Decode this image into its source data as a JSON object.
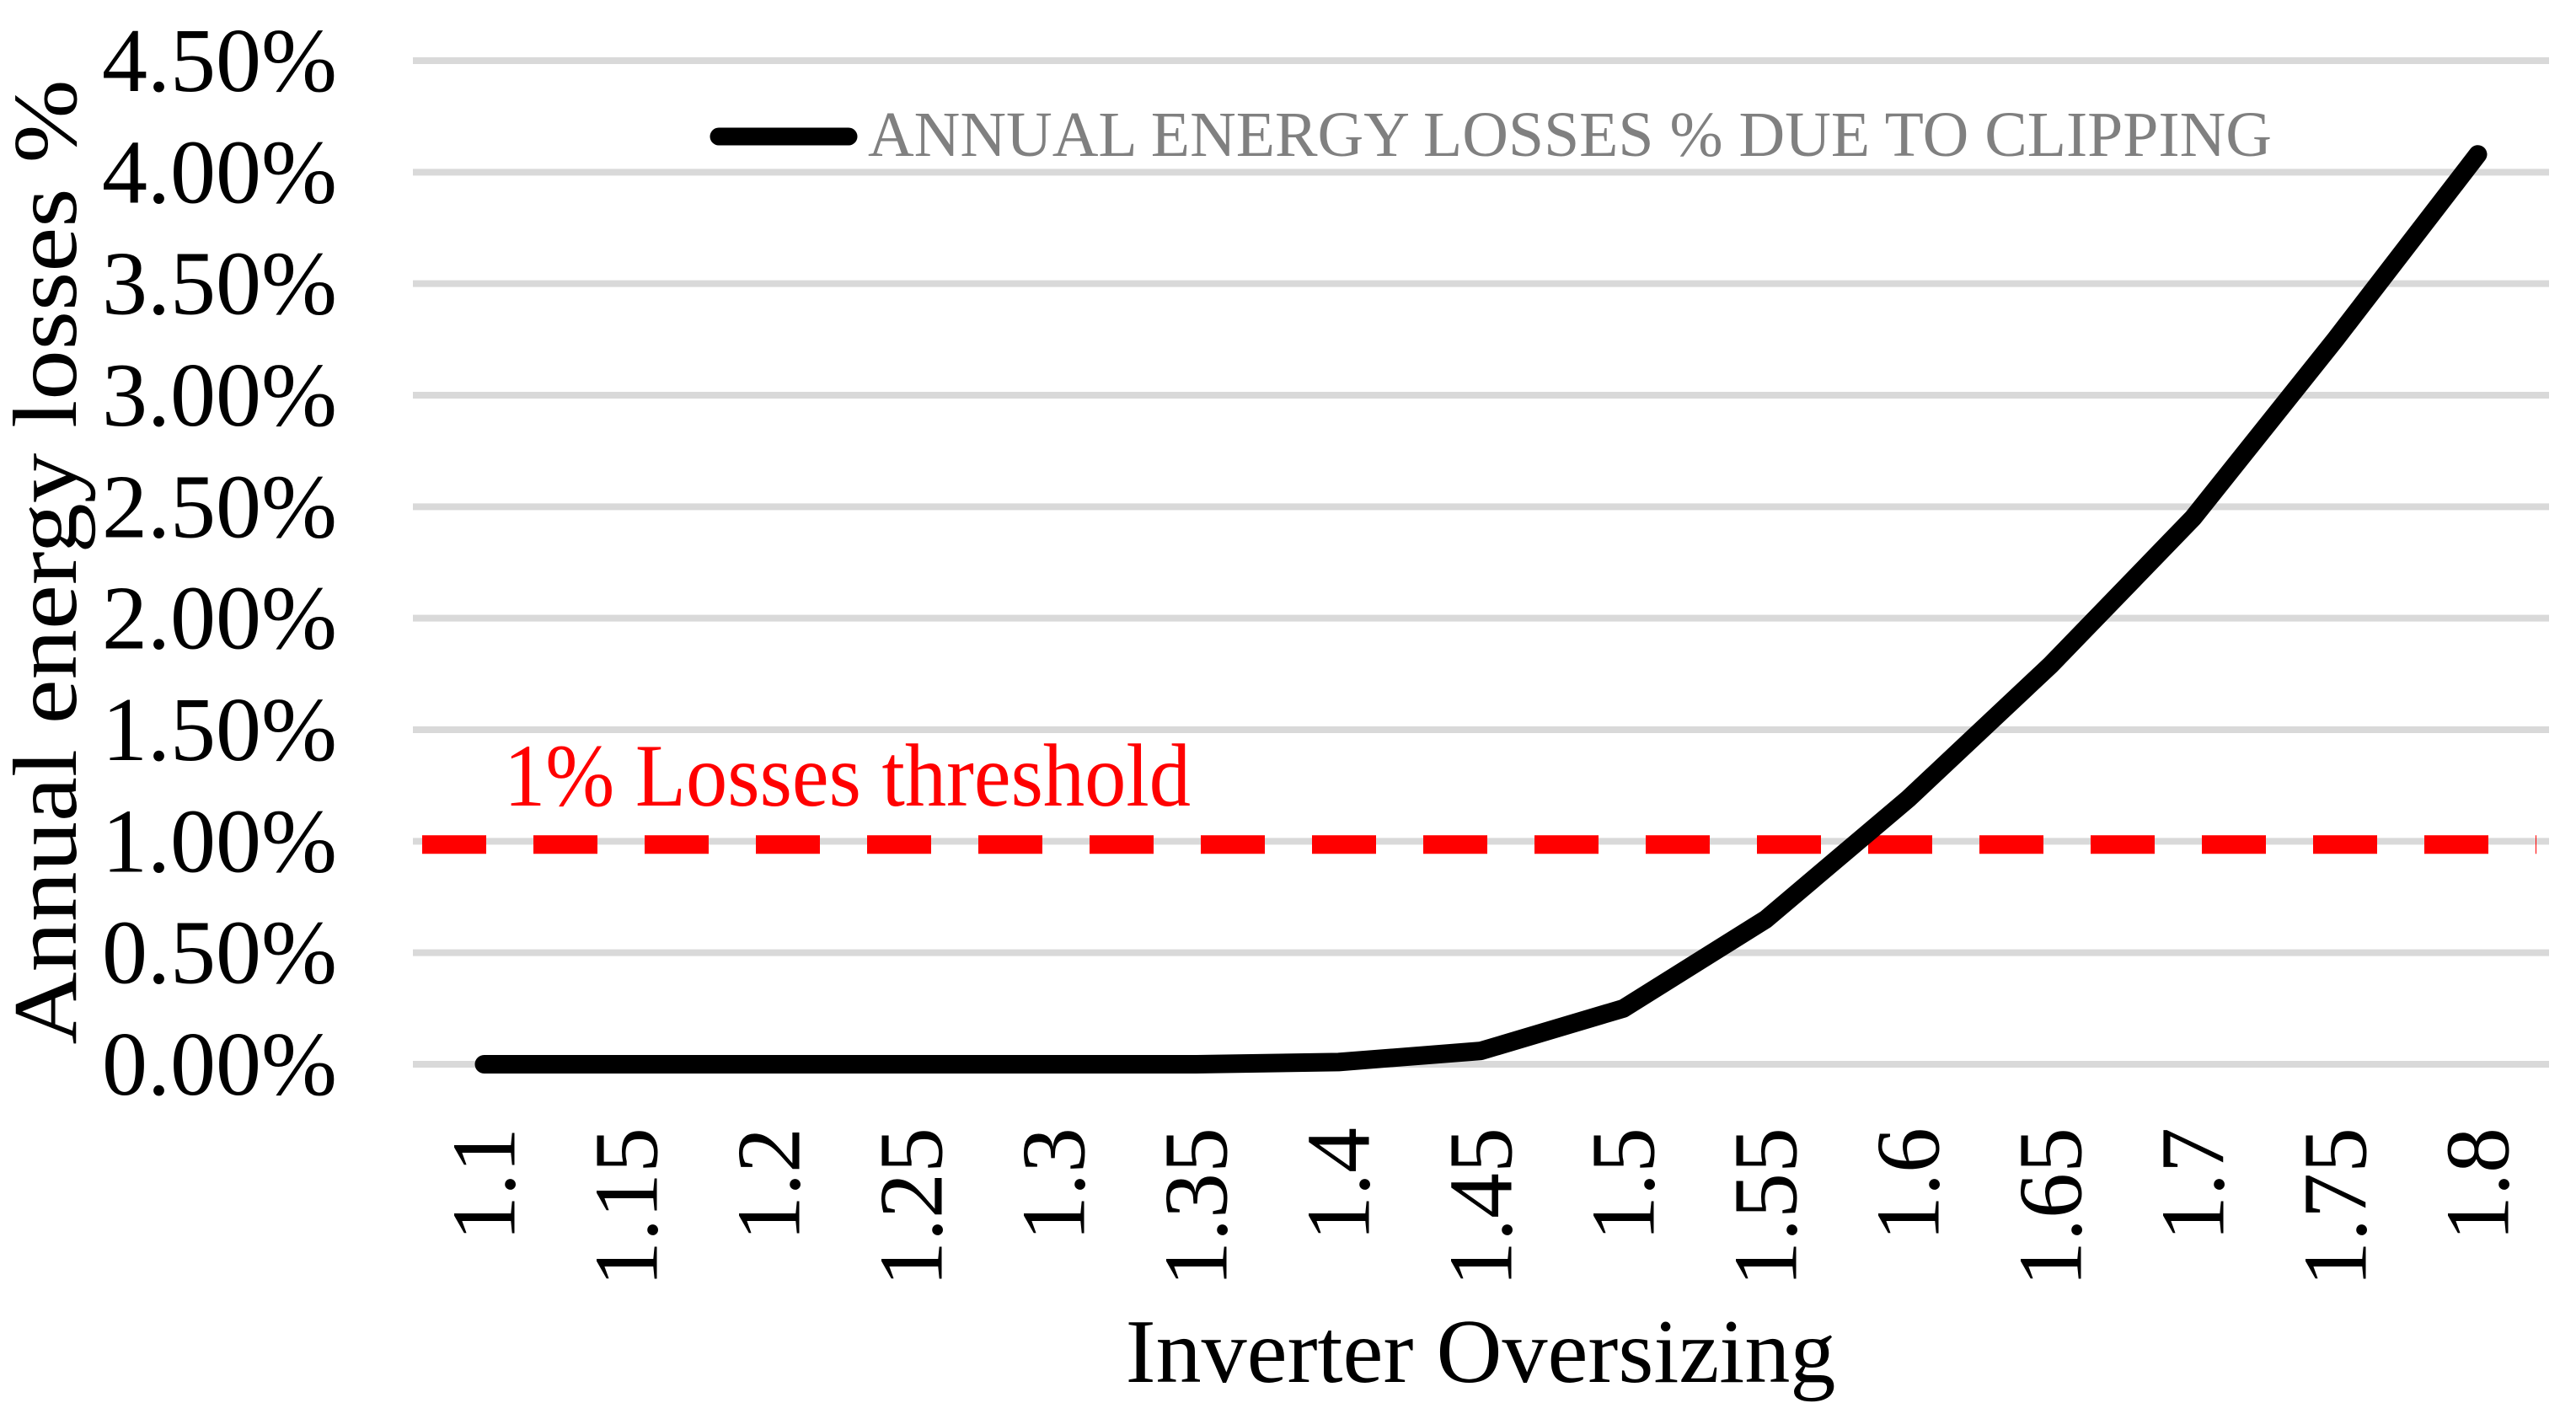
{
  "chart_data": {
    "type": "line",
    "categories": [
      "1.1",
      "1.15",
      "1.2",
      "1.25",
      "1.3",
      "1.35",
      "1.4",
      "1.45",
      "1.5",
      "1.55",
      "1.6",
      "1.65",
      "1.7",
      "1.75",
      "1.8"
    ],
    "series": [
      {
        "name": "ANNUAL ENERGY LOSSES % DUE TO CLIPPING",
        "values": [
          0.0,
          0.0,
          0.0,
          0.0,
          0.0,
          0.0,
          0.01,
          0.06,
          0.25,
          0.65,
          1.19,
          1.79,
          2.45,
          3.25,
          4.08
        ]
      }
    ],
    "value_unit": "%",
    "title": "",
    "xlabel": "Inverter Oversizing",
    "ylabel": "Annual energy losses %",
    "ylim": [
      0,
      4.5
    ],
    "ytick_step": 0.5,
    "ytick_labels": [
      "0.00%",
      "0.50%",
      "1.00%",
      "1.50%",
      "2.00%",
      "2.50%",
      "3.00%",
      "3.50%",
      "4.00%",
      "4.50%"
    ],
    "grid": "horizontal",
    "legend": {
      "position": "top",
      "label": "ANNUAL ENERGY LOSSES % DUE TO CLIPPING"
    },
    "threshold": {
      "value": 1.0,
      "label": "1% Losses threshold",
      "style": "dashed"
    },
    "colors": {
      "series": "#000000",
      "gridline": "#d9d9d9",
      "legend_text": "#808080",
      "threshold": "#ff0000",
      "axis_text": "#000000"
    }
  }
}
